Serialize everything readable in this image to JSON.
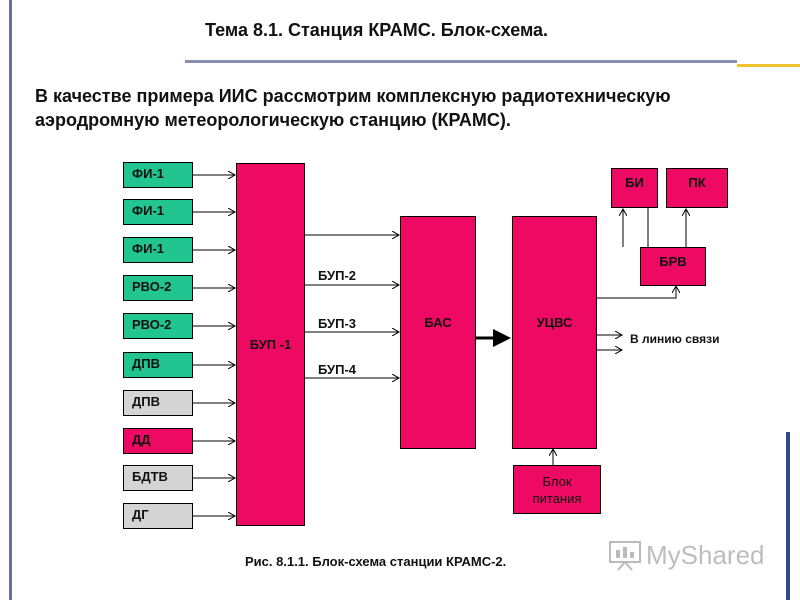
{
  "title": "Тема 8.1. Станция КРАМС. Блок-схема.",
  "intro": "В качестве примера ИИС рассмотрим  комплексную радиотехническую аэродромную метеорологическую станцию (КРАМС).",
  "sensors": [
    {
      "label": "ФИ-1",
      "color": "#22c48f"
    },
    {
      "label": "ФИ-1",
      "color": "#22c48f"
    },
    {
      "label": "ФИ-1",
      "color": "#22c48f"
    },
    {
      "label": "РВО-2",
      "color": "#22c48f"
    },
    {
      "label": "РВО-2",
      "color": "#22c48f"
    },
    {
      "label": "ДПВ",
      "color": "#22c48f"
    },
    {
      "label": "ДПВ",
      "color": "#d4d4d4"
    },
    {
      "label": "ДД",
      "color": "#ee0a63"
    },
    {
      "label": "БДТВ",
      "color": "#d4d4d4"
    },
    {
      "label": "ДГ",
      "color": "#d4d4d4"
    }
  ],
  "blocks": {
    "bup1": "БУП -1",
    "bas": "БАС",
    "ucvs": "УЦВС",
    "bi": "БИ",
    "pk": "ПК",
    "brv": "БРВ",
    "power": "Блок питания"
  },
  "bup_labels": [
    "БУП-2",
    "БУП-3",
    "БУП-4"
  ],
  "link_label": "В линию связи",
  "caption": "Рис. 8.1.1. Блок-схема станции КРАМС-2.",
  "logo_text": "MyShared",
  "colors": {
    "pink": "#ee0a63",
    "green": "#22c48f",
    "gray": "#d4d4d4"
  }
}
